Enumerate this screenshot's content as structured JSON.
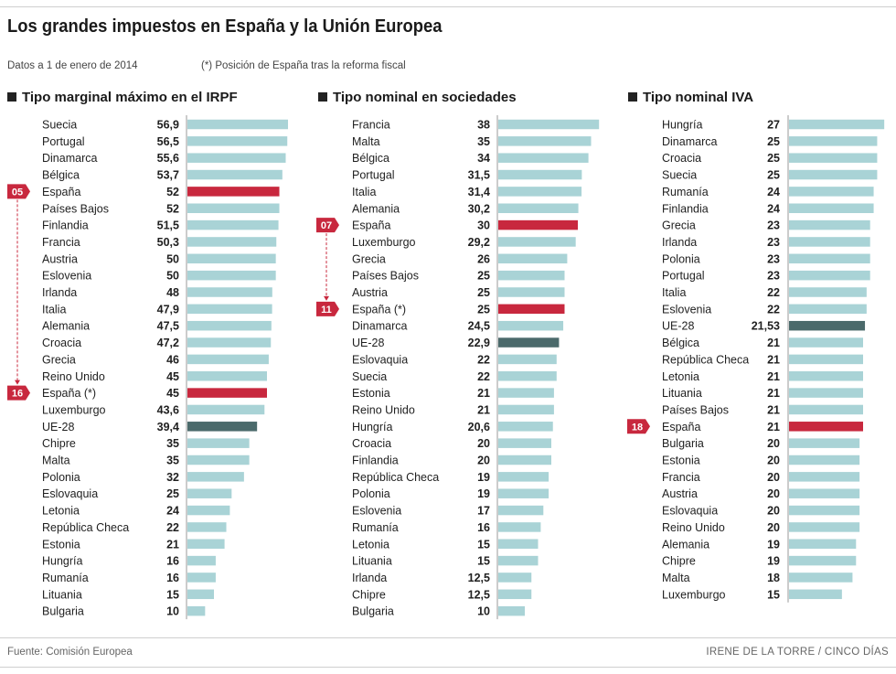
{
  "header": {
    "title": "Los grandes impuestos en España y la Unión Europea",
    "subtitle": "Datos a 1 de enero de 2014",
    "note": "(*) Posición de España tras la reforma fiscal"
  },
  "footer": {
    "source": "Fuente: Comisión Europea",
    "credit": "IRENE DE LA TORRE / CINCO DÍAS"
  },
  "colors": {
    "bar": "#a9d3d6",
    "spain": "#c8283e",
    "eu": "#4b6a6b",
    "marker_arrow": "#c8283e"
  },
  "chart_data": [
    {
      "type": "bar",
      "orientation": "horizontal",
      "title": "Tipo marginal máximo en el IRPF",
      "categories": [
        "Suecia",
        "Portugal",
        "Dinamarca",
        "Bélgica",
        "España",
        "Países Bajos",
        "Finlandia",
        "Francia",
        "Austria",
        "Eslovenia",
        "Irlanda",
        "Italia",
        "Alemania",
        "Croacia",
        "Grecia",
        "Reino Unido",
        "España (*)",
        "Luxemburgo",
        "UE-28",
        "Chipre",
        "Malta",
        "Polonia",
        "Eslovaquia",
        "Letonia",
        "República Checa",
        "Estonia",
        "Hungría",
        "Rumanía",
        "Lituania",
        "Bulgaria"
      ],
      "values": [
        56.9,
        56.5,
        55.6,
        53.7,
        52,
        52,
        51.5,
        50.3,
        50,
        50,
        48,
        47.9,
        47.5,
        47.2,
        46,
        45,
        45,
        43.6,
        39.4,
        35,
        35,
        32,
        25,
        24,
        22,
        21,
        16,
        16,
        15,
        10
      ],
      "value_labels": [
        "56,9",
        "56,5",
        "55,6",
        "53,7",
        "52",
        "52",
        "51,5",
        "50,3",
        "50",
        "50",
        "48",
        "47,9",
        "47,5",
        "47,2",
        "46",
        "45",
        "45",
        "43,6",
        "39,4",
        "35",
        "35",
        "32",
        "25",
        "24",
        "22",
        "21",
        "16",
        "16",
        "15",
        "10"
      ],
      "highlight": {
        "España": "spain",
        "España (*)": "spain",
        "UE-28": "eu"
      },
      "markers": [
        {
          "category": "España",
          "label": "05"
        },
        {
          "category": "España (*)",
          "label": "16"
        }
      ],
      "xlim": [
        0,
        60
      ]
    },
    {
      "type": "bar",
      "orientation": "horizontal",
      "title": "Tipo nominal en sociedades",
      "categories": [
        "Francia",
        "Malta",
        "Bélgica",
        "Portugal",
        "Italia",
        "Alemania",
        "España",
        "Luxemburgo",
        "Grecia",
        "Países Bajos",
        "Austria",
        "España (*)",
        "Dinamarca",
        "UE-28",
        "Eslovaquia",
        "Suecia",
        "Estonia",
        "Reino Unido",
        "Hungría",
        "Croacia",
        "Finlandia",
        "República Checa",
        "Polonia",
        "Eslovenia",
        "Rumanía",
        "Letonia",
        "Lituania",
        "Irlanda",
        "Chipre",
        "Bulgaria"
      ],
      "values": [
        38,
        35,
        34,
        31.5,
        31.4,
        30.2,
        30,
        29.2,
        26,
        25,
        25,
        25,
        24.5,
        22.9,
        22,
        22,
        21,
        21,
        20.6,
        20,
        20,
        19,
        19,
        17,
        16,
        15,
        15,
        12.5,
        12.5,
        10
      ],
      "value_labels": [
        "38",
        "35",
        "34",
        "31,5",
        "31,4",
        "30,2",
        "30",
        "29,2",
        "26",
        "25",
        "25",
        "25",
        "24,5",
        "22,9",
        "22",
        "22",
        "21",
        "21",
        "20,6",
        "20",
        "20",
        "19",
        "19",
        "17",
        "16",
        "15",
        "15",
        "12,5",
        "12,5",
        "10"
      ],
      "highlight": {
        "España": "spain",
        "España (*)": "spain",
        "UE-28": "eu"
      },
      "markers": [
        {
          "category": "España",
          "label": "07"
        },
        {
          "category": "España (*)",
          "label": "11"
        }
      ],
      "xlim": [
        0,
        40
      ]
    },
    {
      "type": "bar",
      "orientation": "horizontal",
      "title": "Tipo nominal IVA",
      "categories": [
        "Hungría",
        "Dinamarca",
        "Croacia",
        "Suecia",
        "Rumanía",
        "Finlandia",
        "Grecia",
        "Irlanda",
        "Polonia",
        "Portugal",
        "Italia",
        "Eslovenia",
        "UE-28",
        "Bélgica",
        "República Checa",
        "Letonia",
        "Lituania",
        "Países Bajos",
        "España",
        "Bulgaria",
        "Estonia",
        "Francia",
        "Austria",
        "Eslovaquia",
        "Reino Unido",
        "Alemania",
        "Chipre",
        "Malta",
        "Luxemburgo"
      ],
      "values": [
        27,
        25,
        25,
        25,
        24,
        24,
        23,
        23,
        23,
        23,
        22,
        22,
        21.53,
        21,
        21,
        21,
        21,
        21,
        21,
        20,
        20,
        20,
        20,
        20,
        20,
        19,
        19,
        18,
        15
      ],
      "value_labels": [
        "27",
        "25",
        "25",
        "25",
        "24",
        "24",
        "23",
        "23",
        "23",
        "23",
        "22",
        "22",
        "21,53",
        "21",
        "21",
        "21",
        "21",
        "21",
        "21",
        "20",
        "20",
        "20",
        "20",
        "20",
        "20",
        "19",
        "19",
        "18",
        "15"
      ],
      "highlight": {
        "España": "spain",
        "UE-28": "eu"
      },
      "markers": [
        {
          "category": "España",
          "label": "18"
        }
      ],
      "xlim": [
        0,
        28
      ]
    }
  ]
}
